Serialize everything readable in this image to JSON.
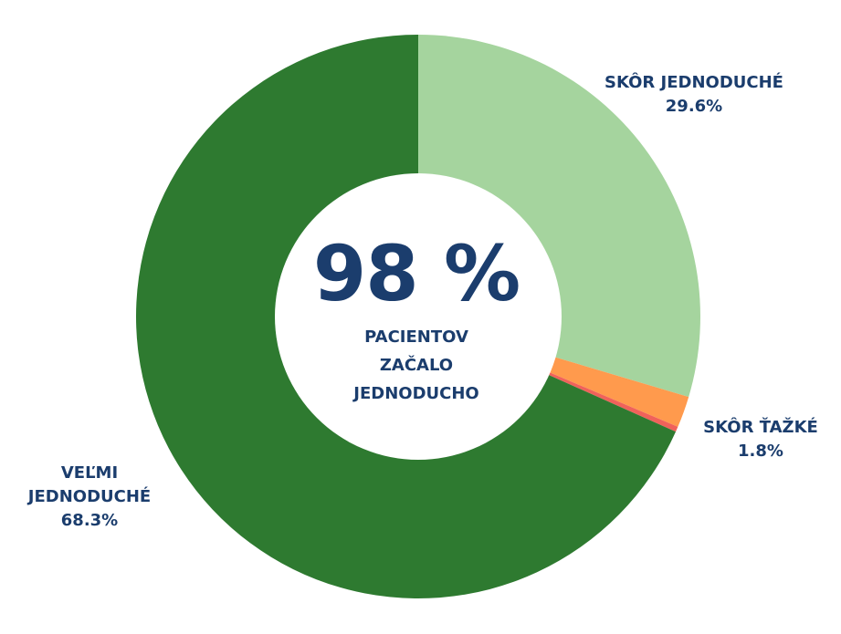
{
  "chart_data": {
    "type": "pie",
    "donut": true,
    "slices": [
      {
        "label": "SKÔR JEDNODUCHÉ",
        "value": 29.6,
        "value_label": "29.6%",
        "color": "#a5d49e"
      },
      {
        "label": "SKÔR ŤAŽKÉ",
        "value": 1.8,
        "value_label": "1.8%",
        "color": "#ff9a4d"
      },
      {
        "label": "",
        "value": 0.3,
        "value_label": "",
        "color": "#f0625a"
      },
      {
        "label": "VEĽMI JEDNODUCHÉ",
        "value": 68.3,
        "value_label": "68.3%",
        "color": "#2e7a30"
      }
    ],
    "center_value": "98 %",
    "center_caption": "PACIENTOV ZAČALO JEDNODUCHO"
  },
  "colors": {
    "text": "#1b3d6d",
    "background": "#ffffff"
  }
}
